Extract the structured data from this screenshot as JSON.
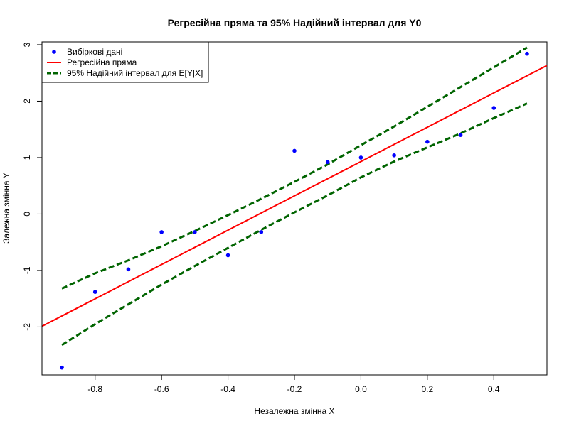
{
  "chart_data": {
    "type": "scatter",
    "title": "Регресійна пряма та 95% Надійний інтервал для Y0",
    "xlabel": "Незалежна змінна X",
    "ylabel": "Залежна змінна Y",
    "xlim": [
      -0.96,
      0.56
    ],
    "ylim": [
      -2.85,
      3.05
    ],
    "x_ticks": [
      -0.8,
      -0.6,
      -0.4,
      -0.2,
      0.0,
      0.2,
      0.4
    ],
    "x_tick_labels": [
      "-0.8",
      "-0.6",
      "-0.4",
      "-0.2",
      "0.0",
      "0.2",
      "0.4"
    ],
    "y_ticks": [
      -2,
      -1,
      0,
      1,
      2,
      3
    ],
    "y_tick_labels": [
      "-2",
      "-1",
      "0",
      "1",
      "2",
      "3"
    ],
    "grid": false,
    "legend_position": "top-left",
    "series": [
      {
        "name": "Вибіркові дані",
        "kind": "points",
        "color": "#0000ff",
        "x": [
          -0.9,
          -0.8,
          -0.7,
          -0.6,
          -0.5,
          -0.4,
          -0.3,
          -0.2,
          -0.1,
          0.0,
          0.1,
          0.2,
          0.3,
          0.4,
          0.5
        ],
        "y": [
          -2.72,
          -1.38,
          -0.98,
          -0.32,
          -0.32,
          -0.73,
          -0.32,
          1.12,
          0.92,
          1.0,
          1.04,
          1.28,
          1.4,
          1.88,
          2.84
        ]
      },
      {
        "name": "Регресійна пряма",
        "kind": "line",
        "color": "#ff0000",
        "intercept": 0.93,
        "slope": 3.04
      },
      {
        "name": "95% Надійний інтервал для E[Y|X]",
        "kind": "band",
        "color": "#006400",
        "x": [
          -0.9,
          -0.8,
          -0.7,
          -0.6,
          -0.5,
          -0.4,
          -0.3,
          -0.2,
          -0.1,
          0.0,
          0.1,
          0.2,
          0.3,
          0.4,
          0.5
        ],
        "upper": [
          -1.32,
          -1.05,
          -0.82,
          -0.57,
          -0.3,
          -0.02,
          0.27,
          0.57,
          0.88,
          1.22,
          1.55,
          1.9,
          2.25,
          2.6,
          2.95
        ],
        "lower": [
          -2.32,
          -1.95,
          -1.6,
          -1.25,
          -0.92,
          -0.6,
          -0.28,
          0.03,
          0.33,
          0.65,
          0.93,
          1.18,
          1.43,
          1.7,
          1.96
        ]
      }
    ]
  }
}
